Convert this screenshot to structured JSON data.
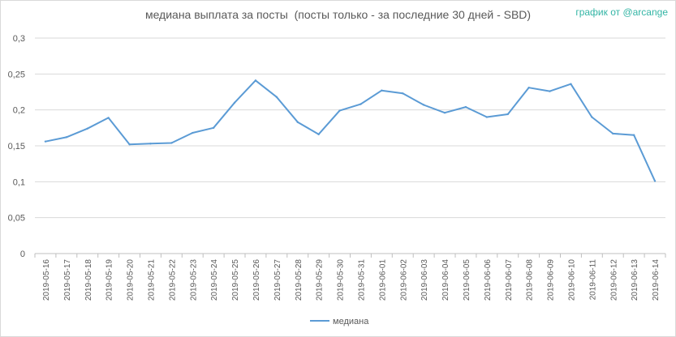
{
  "chart_data": {
    "type": "line",
    "title": "медиана выплата за посты  (посты только - за последние 30 дней - SBD)",
    "credit": "график от @arcange",
    "xlabel": "",
    "ylabel": "",
    "ylim": [
      0,
      0.3
    ],
    "grid": true,
    "legend_position": "bottom",
    "x": [
      "2019-05-16",
      "2019-05-17",
      "2019-05-18",
      "2019-05-19",
      "2019-05-20",
      "2019-05-21",
      "2019-05-22",
      "2019-05-23",
      "2019-05-24",
      "2019-05-25",
      "2019-05-26",
      "2019-05-27",
      "2019-05-28",
      "2019-05-29",
      "2019-05-30",
      "2019-05-31",
      "2019-06-01",
      "2019-06-02",
      "2019-06-03",
      "2019-06-04",
      "2019-06-05",
      "2019-06-06",
      "2019-06-07",
      "2019-06-08",
      "2019-06-09",
      "2019-06-10",
      "2019-06-11",
      "2019-06-12",
      "2019-06-13",
      "2019-06-14"
    ],
    "y_ticks": [
      "0",
      "0,05",
      "0,1",
      "0,15",
      "0,2",
      "0,25",
      "0,3"
    ],
    "y_tick_values": [
      0,
      0.05,
      0.1,
      0.15,
      0.2,
      0.25,
      0.3
    ],
    "series": [
      {
        "name": "медиана",
        "color": "#5b9bd5",
        "values": [
          0.156,
          0.162,
          0.174,
          0.189,
          0.152,
          0.153,
          0.154,
          0.168,
          0.175,
          0.21,
          0.241,
          0.218,
          0.183,
          0.166,
          0.199,
          0.208,
          0.227,
          0.223,
          0.207,
          0.196,
          0.204,
          0.19,
          0.194,
          0.231,
          0.226,
          0.236,
          0.19,
          0.167,
          0.165,
          0.101
        ]
      }
    ]
  }
}
